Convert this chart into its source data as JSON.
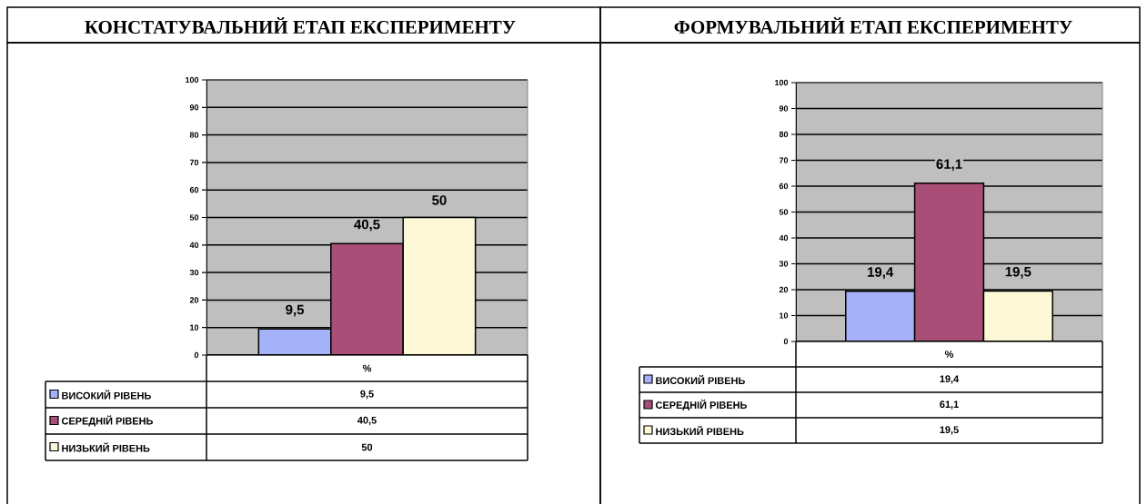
{
  "chart_data": [
    {
      "type": "bar",
      "title": "КОНСТАТУВАЛЬНИЙ ЕТАП ЕКСПЕРИМЕНТУ",
      "categories": [
        "%"
      ],
      "ylim": [
        0,
        100
      ],
      "yticks": [
        0,
        10,
        20,
        30,
        40,
        50,
        60,
        70,
        80,
        90,
        100
      ],
      "grid": "y",
      "legend": "bottom",
      "series": [
        {
          "name": "ВИСОКИЙ РІВЕНЬ",
          "color": "#a6b2f8",
          "values": [
            9.5
          ],
          "value_labels": [
            "9,5"
          ]
        },
        {
          "name": "СЕРЕДНІЙ РІВЕНЬ",
          "color": "#a94f77",
          "values": [
            40.5
          ],
          "value_labels": [
            "40,5"
          ]
        },
        {
          "name": "НИЗЬКИЙ РІВЕНЬ",
          "color": "#fdf9d8",
          "values": [
            50
          ],
          "value_labels": [
            "50"
          ]
        }
      ]
    },
    {
      "type": "bar",
      "title": "ФОРМУВАЛЬНИЙ ЕТАП ЕКСПЕРИМЕНТУ",
      "categories": [
        "%"
      ],
      "ylim": [
        0,
        100
      ],
      "yticks": [
        0,
        10,
        20,
        30,
        40,
        50,
        60,
        70,
        80,
        90,
        100
      ],
      "grid": "y",
      "legend": "bottom",
      "series": [
        {
          "name": "ВИСОКИЙ РІВЕНЬ",
          "color": "#a6b2f8",
          "values": [
            19.4
          ],
          "value_labels": [
            "19,4"
          ]
        },
        {
          "name": "СЕРЕДНІЙ РІВЕНЬ",
          "color": "#a94f77",
          "values": [
            61.1
          ],
          "value_labels": [
            "61,1"
          ]
        },
        {
          "name": "НИЗЬКИЙ РІВЕНЬ",
          "color": "#fdf9d8",
          "values": [
            19.5
          ],
          "value_labels": [
            "19,5"
          ]
        }
      ]
    }
  ]
}
